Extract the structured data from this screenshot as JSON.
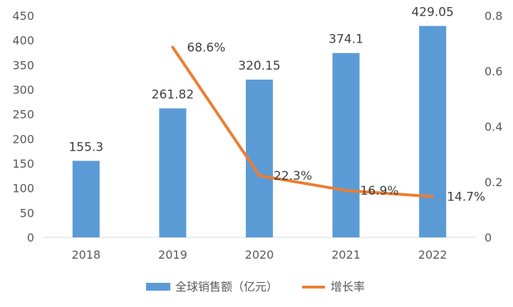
{
  "chart_data": {
    "type": "bar",
    "categories": [
      "2018",
      "2019",
      "2020",
      "2021",
      "2022"
    ],
    "series": [
      {
        "name": "全球销售额（亿元）",
        "type": "bar",
        "axis": "left",
        "values": [
          155.3,
          261.82,
          320.15,
          374.1,
          429.05
        ],
        "labels": [
          "155.3",
          "261.82",
          "320.15",
          "374.1",
          "429.05"
        ],
        "color": "#5B9BD5"
      },
      {
        "name": "增长率",
        "type": "line",
        "axis": "right",
        "x": [
          "2019",
          "2020",
          "2021",
          "2022"
        ],
        "values": [
          0.686,
          0.223,
          0.169,
          0.147
        ],
        "labels": [
          "68.6%",
          "22.3%",
          "16.9%",
          "14.7%"
        ],
        "color": "#ED7D31"
      }
    ],
    "y_left": {
      "min": 0,
      "max": 450,
      "ticks": [
        "0",
        "50",
        "100",
        "150",
        "200",
        "250",
        "300",
        "350",
        "400",
        "450"
      ]
    },
    "y_right": {
      "min": 0,
      "max": 0.8,
      "ticks": [
        "0",
        "0.2",
        "0.4",
        "0.6",
        "0.8"
      ]
    },
    "grid": false,
    "legend": "bottom-center"
  }
}
